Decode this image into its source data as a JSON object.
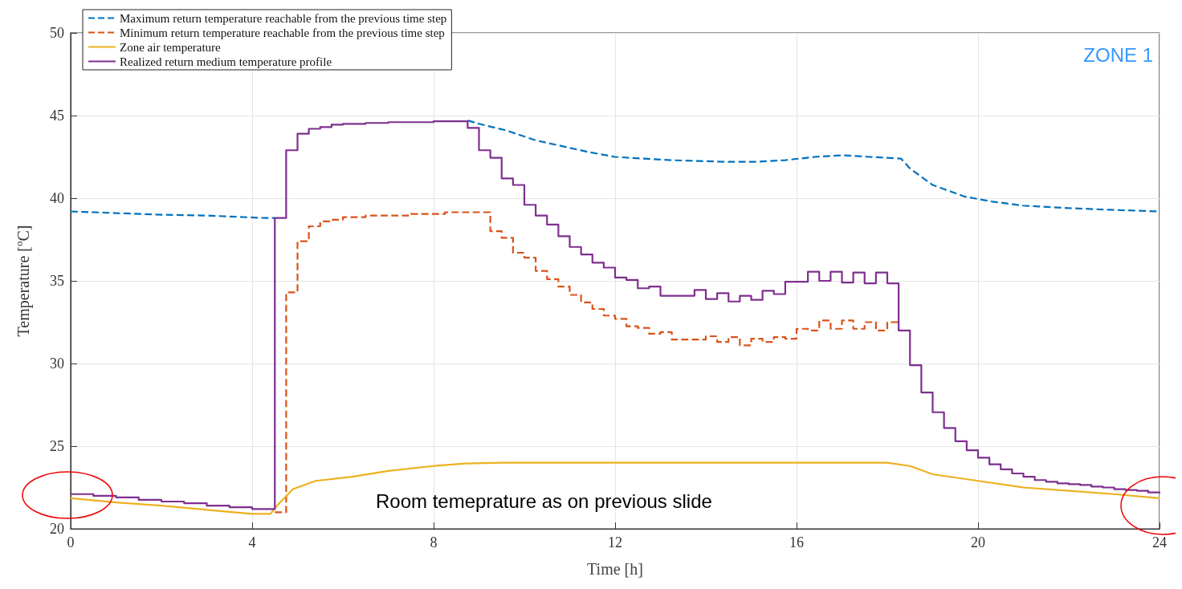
{
  "chart_data": {
    "type": "step",
    "xlabel": "Time [h]",
    "ylabel": "Temperature [$^{o}$C]",
    "xlim": [
      0,
      24
    ],
    "xticks": [
      0,
      4,
      8,
      12,
      16,
      20,
      24
    ],
    "ylim": [
      20,
      50
    ],
    "yticks": [
      20,
      25,
      30,
      35,
      40,
      45,
      50
    ],
    "grid": true,
    "legend": "top left",
    "marker": "none",
    "annotations": [
      "ZONE 1",
      "Room temeprature as on previous slide"
    ],
    "series": [
      {
        "name": "Maximum return temperature reachable from the previous time step",
        "type": "line",
        "line_style": "dashed",
        "color": "#0072bd",
        "x": [
          0,
          1,
          2,
          3,
          4.3,
          4.5,
          6,
          8.75,
          9,
          9.6,
          10.25,
          10.75,
          11.4,
          12,
          12.6,
          13.25,
          13.85,
          14.5,
          15.1,
          15.75,
          16.4,
          17,
          17.6,
          18.3,
          18.5,
          18.75,
          19,
          19.3,
          19.7,
          20.3,
          21,
          22,
          22.9,
          24
        ],
        "values": [
          39.2,
          39.1,
          39.0,
          38.95,
          38.8,
          38.8,
          null,
          44.7,
          44.5,
          44.1,
          43.5,
          43.2,
          42.8,
          42.5,
          42.4,
          42.3,
          42.25,
          42.2,
          42.2,
          42.3,
          42.5,
          42.6,
          42.5,
          42.4,
          41.8,
          41.3,
          40.8,
          40.5,
          40.1,
          39.8,
          39.55,
          39.4,
          39.3,
          39.2
        ]
      },
      {
        "name": "Minimum return temperature reachable from the previous time step",
        "line_style": "dashed",
        "color": "#d95319",
        "x": [
          4.5,
          4.75,
          5,
          5.25,
          5.5,
          5.75,
          6,
          6.5,
          7.5,
          8.25,
          9.25,
          9.5,
          9.75,
          10,
          10.25,
          10.5,
          10.75,
          11,
          11.25,
          11.5,
          11.75,
          12,
          12.25,
          12.5,
          12.75,
          13,
          13.25,
          14,
          14.25,
          14.5,
          14.75,
          15,
          15.25,
          15.5,
          15.75,
          16,
          16.25,
          16.5,
          16.75,
          17,
          17.25,
          17.5,
          17.75,
          18,
          18.25
        ],
        "values": [
          21.0,
          34.3,
          37.4,
          38.3,
          38.6,
          38.7,
          38.85,
          38.95,
          39.05,
          39.15,
          38.0,
          37.6,
          36.7,
          36.4,
          35.6,
          35.1,
          34.65,
          34.15,
          33.7,
          33.3,
          32.9,
          32.7,
          32.25,
          32.15,
          31.8,
          31.9,
          31.45,
          31.65,
          31.3,
          31.6,
          31.1,
          31.5,
          31.3,
          31.6,
          31.5,
          32.1,
          32.0,
          32.6,
          32.1,
          32.6,
          32.1,
          32.5,
          32.0,
          32.5,
          32.5
        ]
      },
      {
        "name": "Zone air temperature",
        "type": "line",
        "line_style": "solid",
        "color": "#edb120",
        "x": [
          0,
          1,
          2,
          3,
          4,
          4.4,
          4.6,
          4.9,
          5.4,
          6.2,
          7,
          8,
          8.7,
          9.5,
          18,
          18.5,
          19,
          20,
          21,
          22,
          23,
          24
        ],
        "values": [
          21.85,
          21.6,
          21.4,
          21.15,
          20.9,
          20.9,
          21.55,
          22.4,
          22.9,
          23.15,
          23.5,
          23.8,
          23.95,
          24.0,
          24.0,
          23.8,
          23.3,
          22.9,
          22.5,
          22.3,
          22.1,
          21.85
        ]
      },
      {
        "name": "Realized return medium temperature profile",
        "line_style": "solid",
        "color": "#7e2f8e",
        "x": [
          0,
          0.5,
          1,
          1.5,
          2,
          2.5,
          3,
          3.5,
          4,
          4.5,
          4.75,
          5,
          5.25,
          5.5,
          5.75,
          6,
          6.5,
          7,
          7.5,
          8,
          8.75,
          9,
          9.25,
          9.5,
          9.75,
          10,
          10.25,
          10.5,
          10.75,
          11,
          11.25,
          11.5,
          11.75,
          12,
          12.25,
          12.5,
          12.75,
          13,
          13.75,
          14,
          14.25,
          14.5,
          14.75,
          15,
          15.25,
          15.5,
          15.75,
          16.25,
          16.5,
          16.75,
          17,
          17.25,
          17.5,
          17.75,
          18,
          18.25,
          18.5,
          18.75,
          19,
          19.25,
          19.5,
          19.75,
          20,
          20.25,
          20.5,
          20.75,
          21,
          21.25,
          21.5,
          21.75,
          22,
          22.25,
          22.5,
          22.75,
          23,
          23.25,
          23.5,
          23.75,
          24
        ],
        "values": [
          22.1,
          22.0,
          21.9,
          21.75,
          21.65,
          21.55,
          21.4,
          21.3,
          21.2,
          38.8,
          42.9,
          43.9,
          44.2,
          44.3,
          44.45,
          44.5,
          44.55,
          44.6,
          44.6,
          44.65,
          44.25,
          42.9,
          42.45,
          41.2,
          40.8,
          39.6,
          38.95,
          38.4,
          37.7,
          37.05,
          36.6,
          36.1,
          35.8,
          35.2,
          35.05,
          34.55,
          34.65,
          34.1,
          34.45,
          33.9,
          34.25,
          33.75,
          34.1,
          33.85,
          34.4,
          34.2,
          34.95,
          35.55,
          35.0,
          35.55,
          34.9,
          35.5,
          34.85,
          35.5,
          34.85,
          32.0,
          29.9,
          28.25,
          27.05,
          26.1,
          25.3,
          24.75,
          24.3,
          23.9,
          23.6,
          23.35,
          23.15,
          22.95,
          22.85,
          22.75,
          22.7,
          22.65,
          22.55,
          22.5,
          22.4,
          22.35,
          22.3,
          22.2,
          22.15
        ]
      }
    ]
  }
}
